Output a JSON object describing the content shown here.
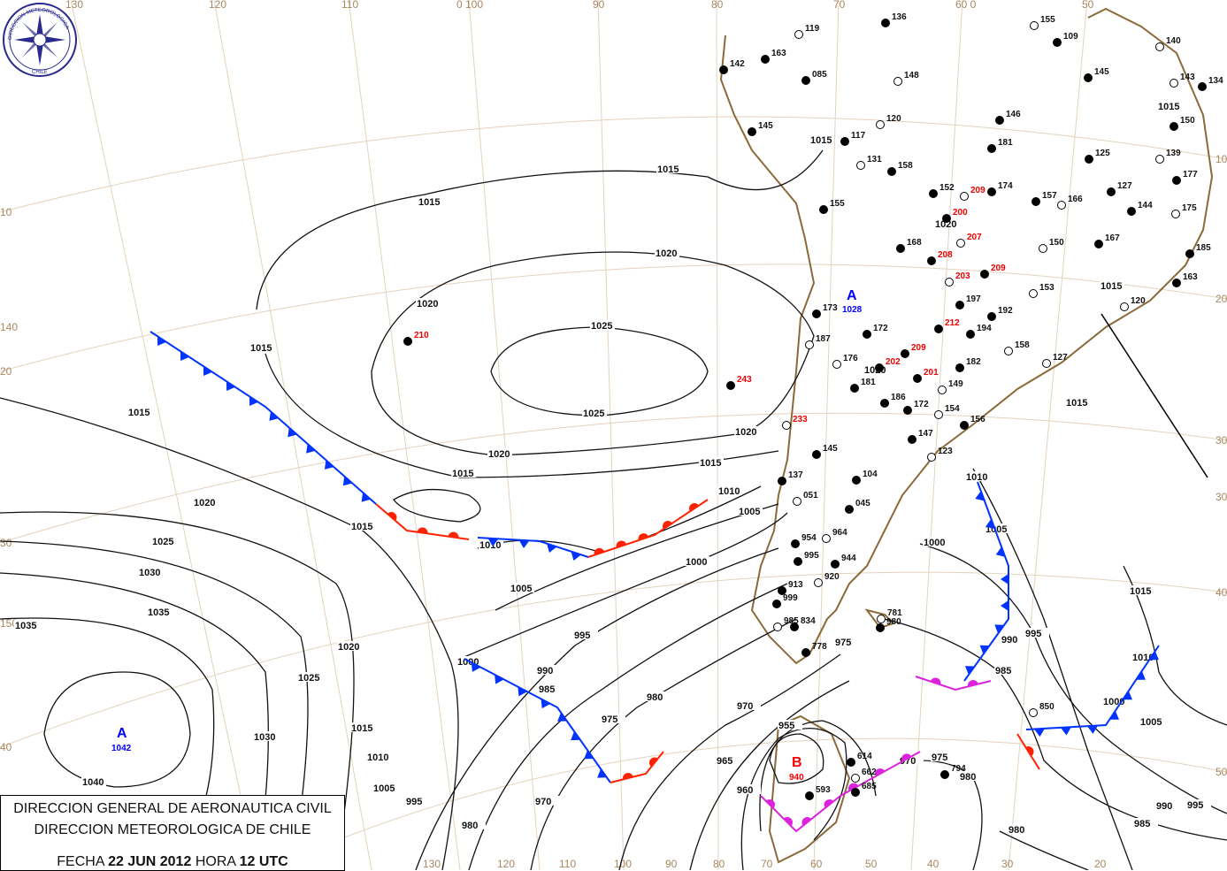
{
  "logo": {
    "text_top": "DIRECCION METEOROLOGICA",
    "text_bottom": "CHILE",
    "color": "#2a2a8c"
  },
  "title": {
    "line1": "DIRECCION GENERAL DE AERONAUTICA CIVIL",
    "line2": "DIRECCION METEOROLOGICA DE CHILE",
    "fecha_label": "FECHA",
    "fecha": "22 JUN 2012",
    "hora_label": "HORA",
    "hora": "12 UTC"
  },
  "pressure_centers": [
    {
      "type": "A",
      "value": "1042",
      "color": "#0000ff"
    },
    {
      "type": "A",
      "value": "1028",
      "color": "#0000ff"
    },
    {
      "type": "B",
      "value": "940",
      "color": "#ff0000"
    }
  ],
  "grid_labels": [
    "130",
    "120",
    "110",
    "0 100",
    "90",
    "80",
    "70",
    "60 0",
    "50",
    "10",
    "140",
    "20",
    "30",
    "150",
    "40",
    "10",
    "20",
    "30",
    "30",
    "40",
    "50",
    "130",
    "120",
    "110",
    "100",
    "90",
    "80",
    "70",
    "60",
    "50",
    "40",
    "30",
    "20"
  ],
  "isobar_labels": [
    "1015",
    "1015",
    "1020",
    "1020",
    "1025",
    "1025",
    "1015",
    "1015",
    "1020",
    "1020",
    "1015",
    "1015",
    "1010",
    "1005",
    "1020",
    "1025",
    "1030",
    "1035",
    "1035",
    "1015",
    "1010",
    "1005",
    "1000",
    "995",
    "990",
    "985",
    "980",
    "975",
    "970",
    "965",
    "960",
    "955",
    "975",
    "1000",
    "1020",
    "1025",
    "1030",
    "1015",
    "1010",
    "1005",
    "995",
    "980",
    "970",
    "1040",
    "1010",
    "1005",
    "1000",
    "995",
    "990",
    "985",
    "1015",
    "1010",
    "1000",
    "1005",
    "990",
    "995",
    "985",
    "980",
    "980",
    "975",
    "970",
    "1015",
    "1015",
    "1015",
    "1015",
    "1020",
    "1020"
  ],
  "stations": [
    "119",
    "163",
    "136",
    "155",
    "109",
    "145",
    "140",
    "142",
    "085",
    "148",
    "146",
    "134",
    "143",
    "150",
    "145",
    "120",
    "181",
    "117",
    "131",
    "158",
    "125",
    "139",
    "177",
    "152",
    "209",
    "174",
    "157",
    "166",
    "127",
    "144",
    "175",
    "155",
    "200",
    "207",
    "168",
    "208",
    "150",
    "167",
    "185",
    "203",
    "209",
    "163",
    "153",
    "197",
    "192",
    "120",
    "212",
    "194",
    "158",
    "173",
    "172",
    "187",
    "209",
    "202",
    "176",
    "181",
    "182",
    "127",
    "210",
    "243",
    "149",
    "186",
    "172",
    "154",
    "201",
    "156",
    "233",
    "145",
    "147",
    "123",
    "137",
    "104",
    "051",
    "045",
    "954",
    "964",
    "995",
    "944",
    "920",
    "913",
    "999",
    "985",
    "834",
    "778",
    "781",
    "980",
    "614",
    "662",
    "593",
    "685",
    "850",
    "794"
  ],
  "stations_red": [
    "209",
    "200",
    "207",
    "208",
    "203",
    "209",
    "212",
    "209",
    "202",
    "201",
    "210",
    "243",
    "233"
  ],
  "colors": {
    "isobar": "#111111",
    "coast": "#8b6a3a",
    "graticule": "#e3d2bd",
    "cold_front": "#0033ff",
    "warm_front": "#ff2200",
    "occluded_front": "#dd22dd"
  }
}
